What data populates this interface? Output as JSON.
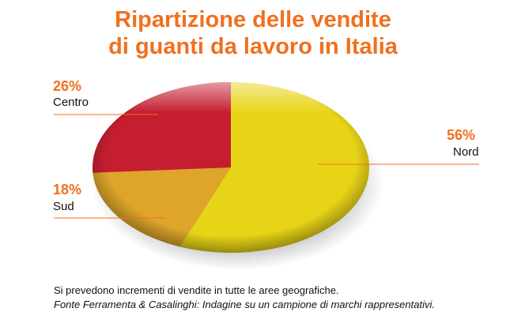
{
  "chart_data": {
    "type": "pie",
    "title": "Ripartizione delle vendite di guanti da lavoro in Italia",
    "title_lines": [
      "Ripartizione delle vendite",
      "di guanti da lavoro in Italia"
    ],
    "slices": [
      {
        "label": "Nord",
        "value": 56,
        "value_label": "56%",
        "color": "#e8d417"
      },
      {
        "label": "Sud",
        "value": 18,
        "value_label": "18%",
        "color": "#dea52a"
      },
      {
        "label": "Centro",
        "value": 26,
        "value_label": "26%",
        "color": "#c41e30"
      }
    ],
    "accent_color": "#f0701e"
  },
  "footer": {
    "note": "Si prevedono incrementi di vendite in tutte le aree geografiche.",
    "source": "Fonte Ferramenta & Casalinghi: Indagine su un campione di marchi rappresentativi."
  }
}
